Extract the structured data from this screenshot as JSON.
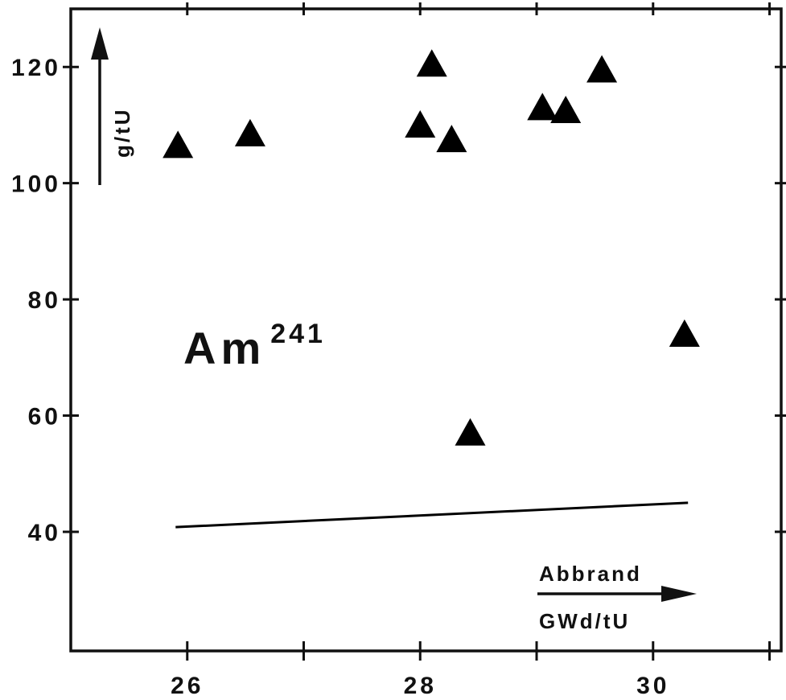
{
  "chart_data": {
    "type": "scatter",
    "title": "",
    "xlabel": "",
    "ylabel": "",
    "xlim": [
      25.0,
      31.1
    ],
    "ylim": [
      19.5,
      130.0
    ],
    "x_ticks": [
      26,
      28,
      30
    ],
    "y_ticks": [
      40,
      60,
      80,
      100,
      120
    ],
    "x_tick_labels": [
      "26",
      "28",
      "30"
    ],
    "y_tick_labels": [
      "40",
      "60",
      "80",
      "100",
      "120"
    ],
    "grid": false,
    "annotations": {
      "isotope_symbol": "Am",
      "isotope_mass": "241",
      "y_unit": "g/tU",
      "x_title": "Abbrand",
      "x_unit": "GWd/tU"
    },
    "series": [
      {
        "marker": "triangle",
        "color": "#000000",
        "points": [
          {
            "x": 25.92,
            "y": 106
          },
          {
            "x": 26.54,
            "y": 108
          },
          {
            "x": 28.0,
            "y": 109.5
          },
          {
            "x": 28.1,
            "y": 120
          },
          {
            "x": 28.27,
            "y": 107
          },
          {
            "x": 28.43,
            "y": 56.5
          },
          {
            "x": 29.05,
            "y": 112.5
          },
          {
            "x": 29.25,
            "y": 112
          },
          {
            "x": 29.56,
            "y": 119
          },
          {
            "x": 30.27,
            "y": 73.5
          }
        ]
      },
      {
        "type": "line",
        "color": "#000000",
        "points": [
          {
            "x": 25.9,
            "y": 40.8
          },
          {
            "x": 30.3,
            "y": 45.0
          }
        ]
      }
    ]
  }
}
